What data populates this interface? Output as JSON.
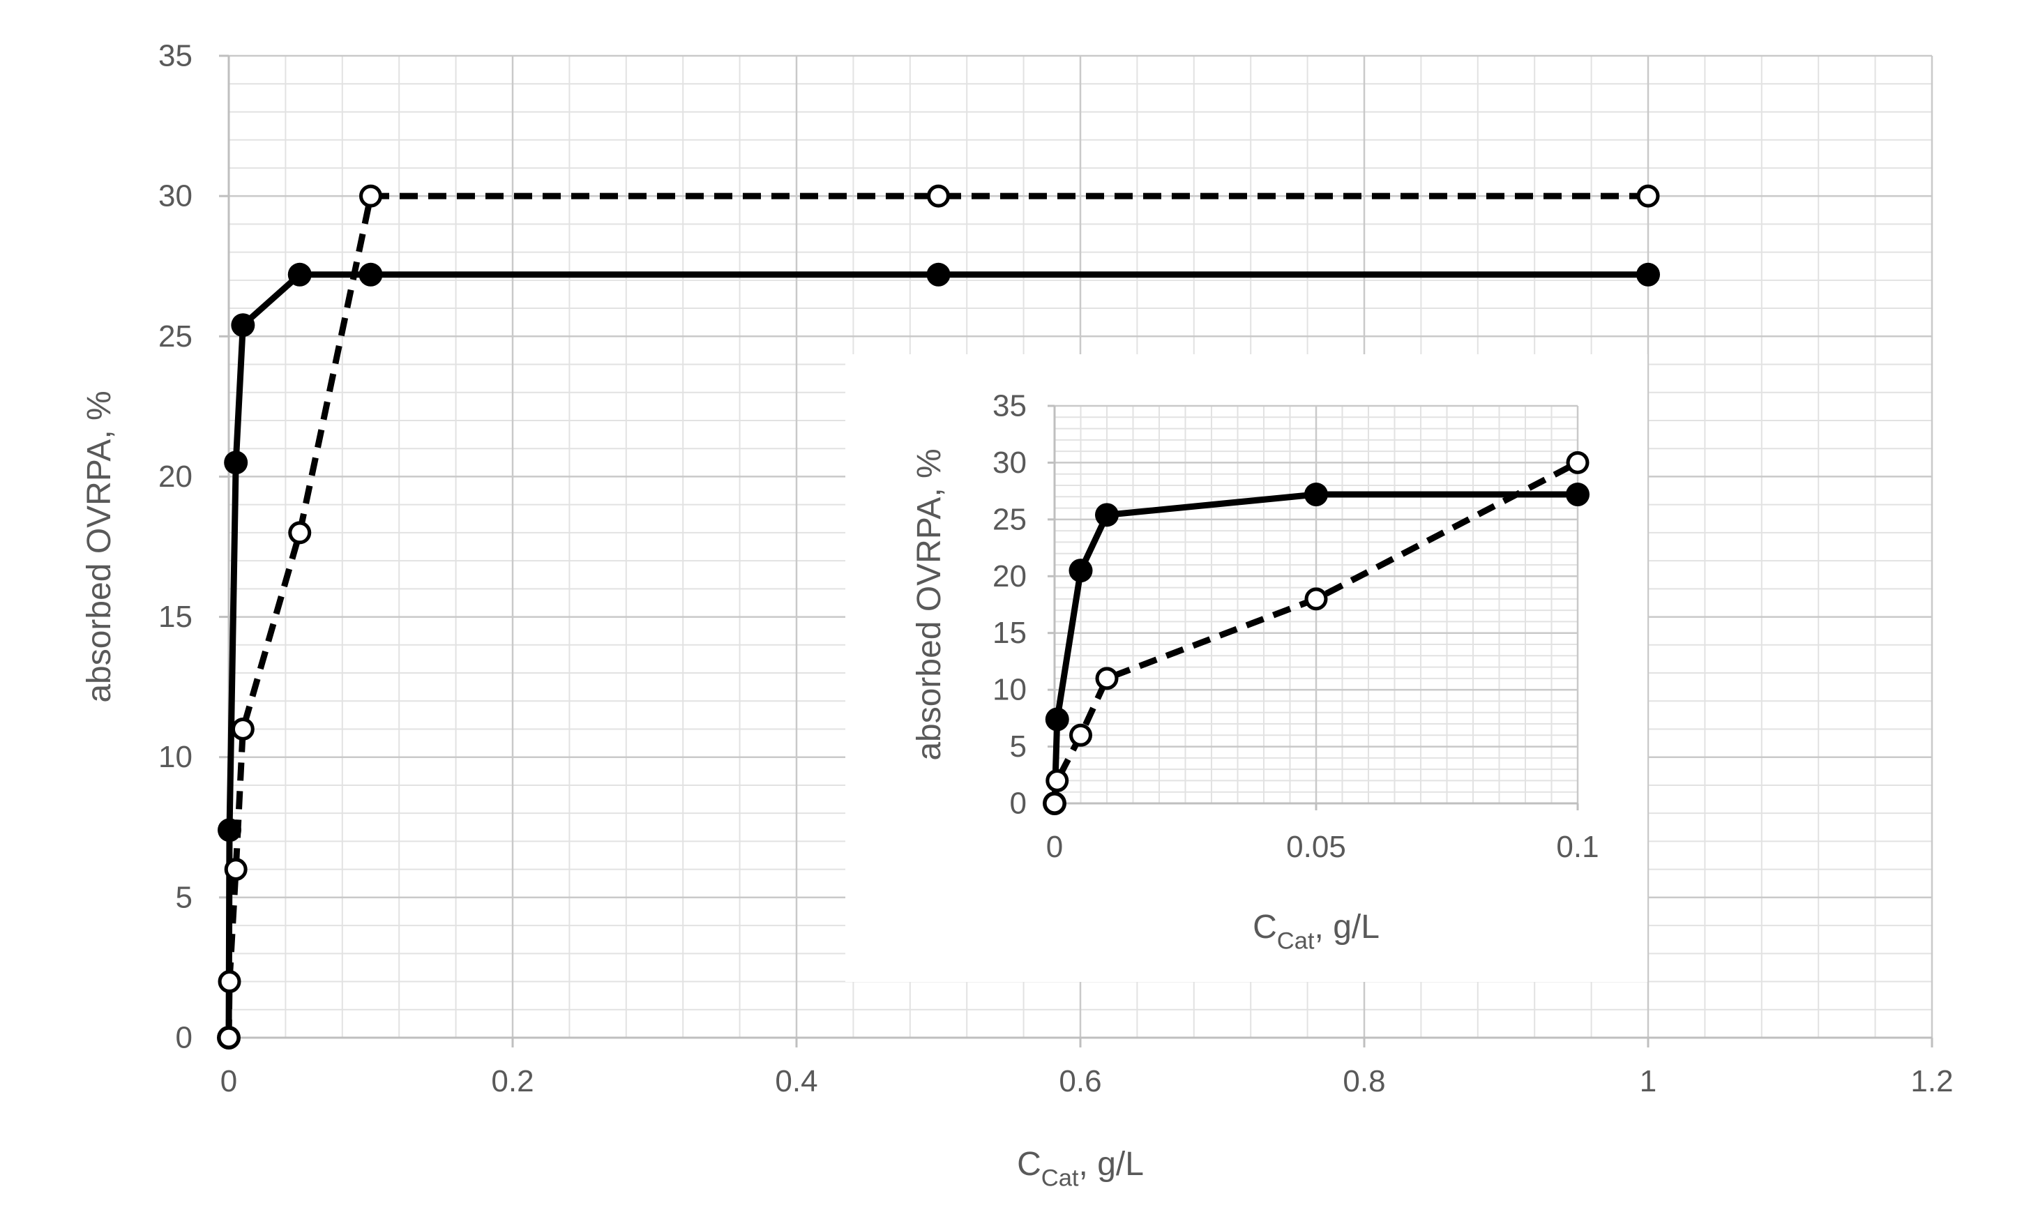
{
  "chart_data": [
    {
      "type": "line",
      "title": "",
      "xlabel": {
        "main": "C",
        "sub": "Cat",
        "unit": ", g/L"
      },
      "ylabel": "absorbed OVRPA, %",
      "xlim": [
        0,
        1.2
      ],
      "ylim": [
        0,
        35
      ],
      "xticks": [
        0,
        0.2,
        0.4,
        0.6,
        0.8,
        1,
        1.2
      ],
      "xtick_labels": [
        "0",
        "0.2",
        "0.4",
        "0.6",
        "0.8",
        "1",
        "1.2"
      ],
      "yticks": [
        0,
        5,
        10,
        15,
        20,
        25,
        30,
        35
      ],
      "ytick_labels": [
        "0",
        "5",
        "10",
        "15",
        "20",
        "25",
        "30",
        "35"
      ],
      "grid": true,
      "series": [
        {
          "name": "filled circles, solid line",
          "style": "solid",
          "marker": "filled-circle",
          "x": [
            0,
            0.0005,
            0.005,
            0.01,
            0.05,
            0.1,
            0.5,
            1
          ],
          "y": [
            0,
            7.4,
            20.5,
            25.4,
            27.2,
            27.2,
            27.2,
            27.2
          ]
        },
        {
          "name": "open circles, dashed line",
          "style": "dashed",
          "marker": "open-circle",
          "x": [
            0,
            0.0005,
            0.005,
            0.01,
            0.05,
            0.1,
            0.5,
            1
          ],
          "y": [
            0,
            2,
            6,
            11,
            18,
            30,
            30,
            30
          ]
        }
      ]
    },
    {
      "type": "line",
      "title": "inset",
      "xlabel": {
        "main": "C",
        "sub": "Cat",
        "unit": ", g/L"
      },
      "ylabel": "absorbed OVRPA, %",
      "xlim": [
        0,
        0.1
      ],
      "ylim": [
        0,
        35
      ],
      "xticks": [
        0,
        0.05,
        0.1
      ],
      "xtick_labels": [
        "0",
        "0.05",
        "0.1"
      ],
      "yticks": [
        0,
        5,
        10,
        15,
        20,
        25,
        30,
        35
      ],
      "ytick_labels": [
        "0",
        "5",
        "10",
        "15",
        "20",
        "25",
        "30",
        "35"
      ],
      "grid": true,
      "series": [
        {
          "name": "filled circles, solid line",
          "style": "solid",
          "marker": "filled-circle",
          "x": [
            0,
            0.0005,
            0.005,
            0.01,
            0.05,
            0.1
          ],
          "y": [
            0,
            7.4,
            20.5,
            25.4,
            27.2,
            27.2
          ]
        },
        {
          "name": "open circles, dashed line",
          "style": "dashed",
          "marker": "open-circle",
          "x": [
            0,
            0.0005,
            0.005,
            0.01,
            0.05,
            0.1
          ],
          "y": [
            0,
            2,
            6,
            11,
            18,
            30
          ]
        }
      ]
    }
  ]
}
